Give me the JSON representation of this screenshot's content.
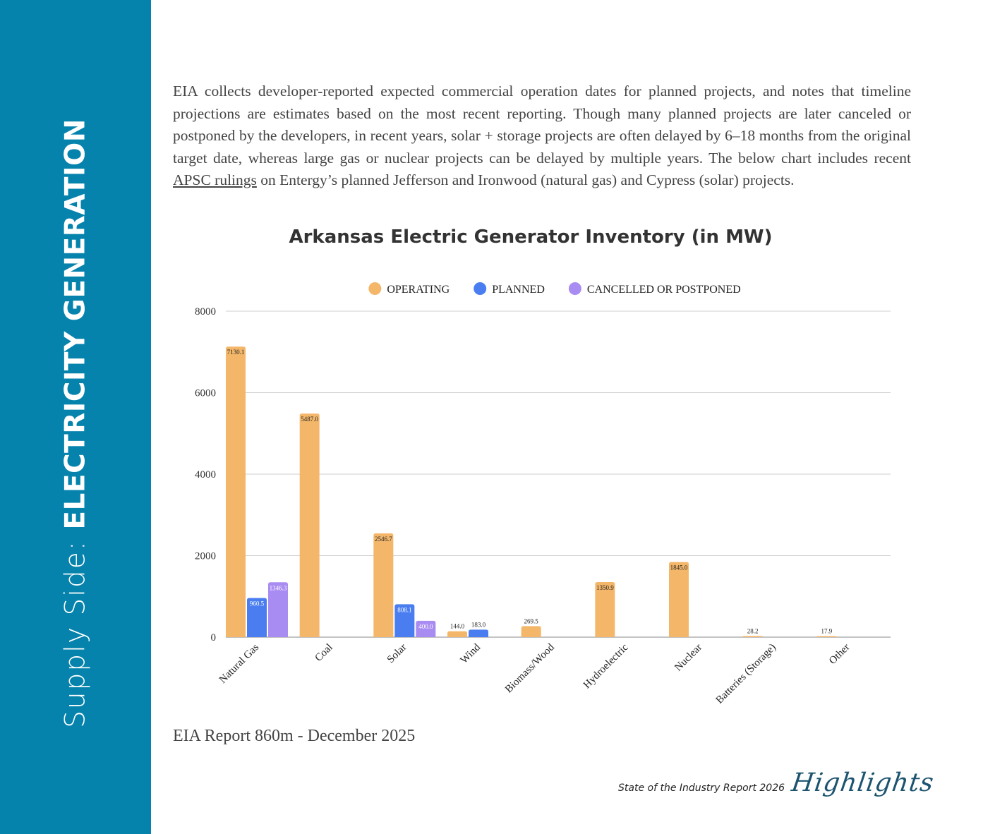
{
  "sidebar": {
    "title_light": "Supply Side: ",
    "title_bold": "ELECTRICITY GENERATION"
  },
  "intro": {
    "text_before_link": "EIA collects developer-reported expected commercial operation dates for planned projects, and notes that timeline projections are estimates based on the most recent reporting. Though many planned projects are later canceled or postponed by the developers, in recent years, solar + storage projects are often delayed by 6–18 months from the original target date, whereas large gas or nuclear projects can be delayed by multiple years. The below chart includes recent ",
    "link_text": "APSC rulings",
    "text_after_link": " on Entergy’s planned Jefferson and Ironwood (natural gas) and Cypress (solar) projects."
  },
  "chart_data": {
    "type": "bar",
    "title": "Arkansas Electric Generator Inventory (in MW)",
    "categories": [
      "Natural Gas",
      "Coal",
      "Solar",
      "Wind",
      "Biomass/Wood",
      "Hydroelectric",
      "Nuclear",
      "Batteries (Storage)",
      "Other"
    ],
    "series": [
      {
        "name": "OPERATING",
        "color": "#f4b76a",
        "values": [
          7130.1,
          5487.0,
          2546.7,
          144.0,
          269.5,
          1350.9,
          1845.0,
          28.2,
          17.9
        ]
      },
      {
        "name": "PLANNED",
        "color": "#4a7ef0",
        "values": [
          960.5,
          null,
          808.1,
          183.0,
          null,
          null,
          null,
          null,
          null
        ]
      },
      {
        "name": "CANCELLED OR POSTPONED",
        "color": "#a98cf2",
        "values": [
          1346.3,
          null,
          400.0,
          null,
          null,
          null,
          null,
          null,
          null
        ]
      }
    ],
    "ylim": [
      0,
      8000
    ],
    "yticks": [
      0,
      2000,
      4000,
      6000,
      8000
    ],
    "grid": true,
    "legend": "top-center"
  },
  "source_note": "EIA Report 860m - December 2025",
  "footer": {
    "report_name": "State of the Industry Report 2026",
    "highlights": "Highlights"
  }
}
